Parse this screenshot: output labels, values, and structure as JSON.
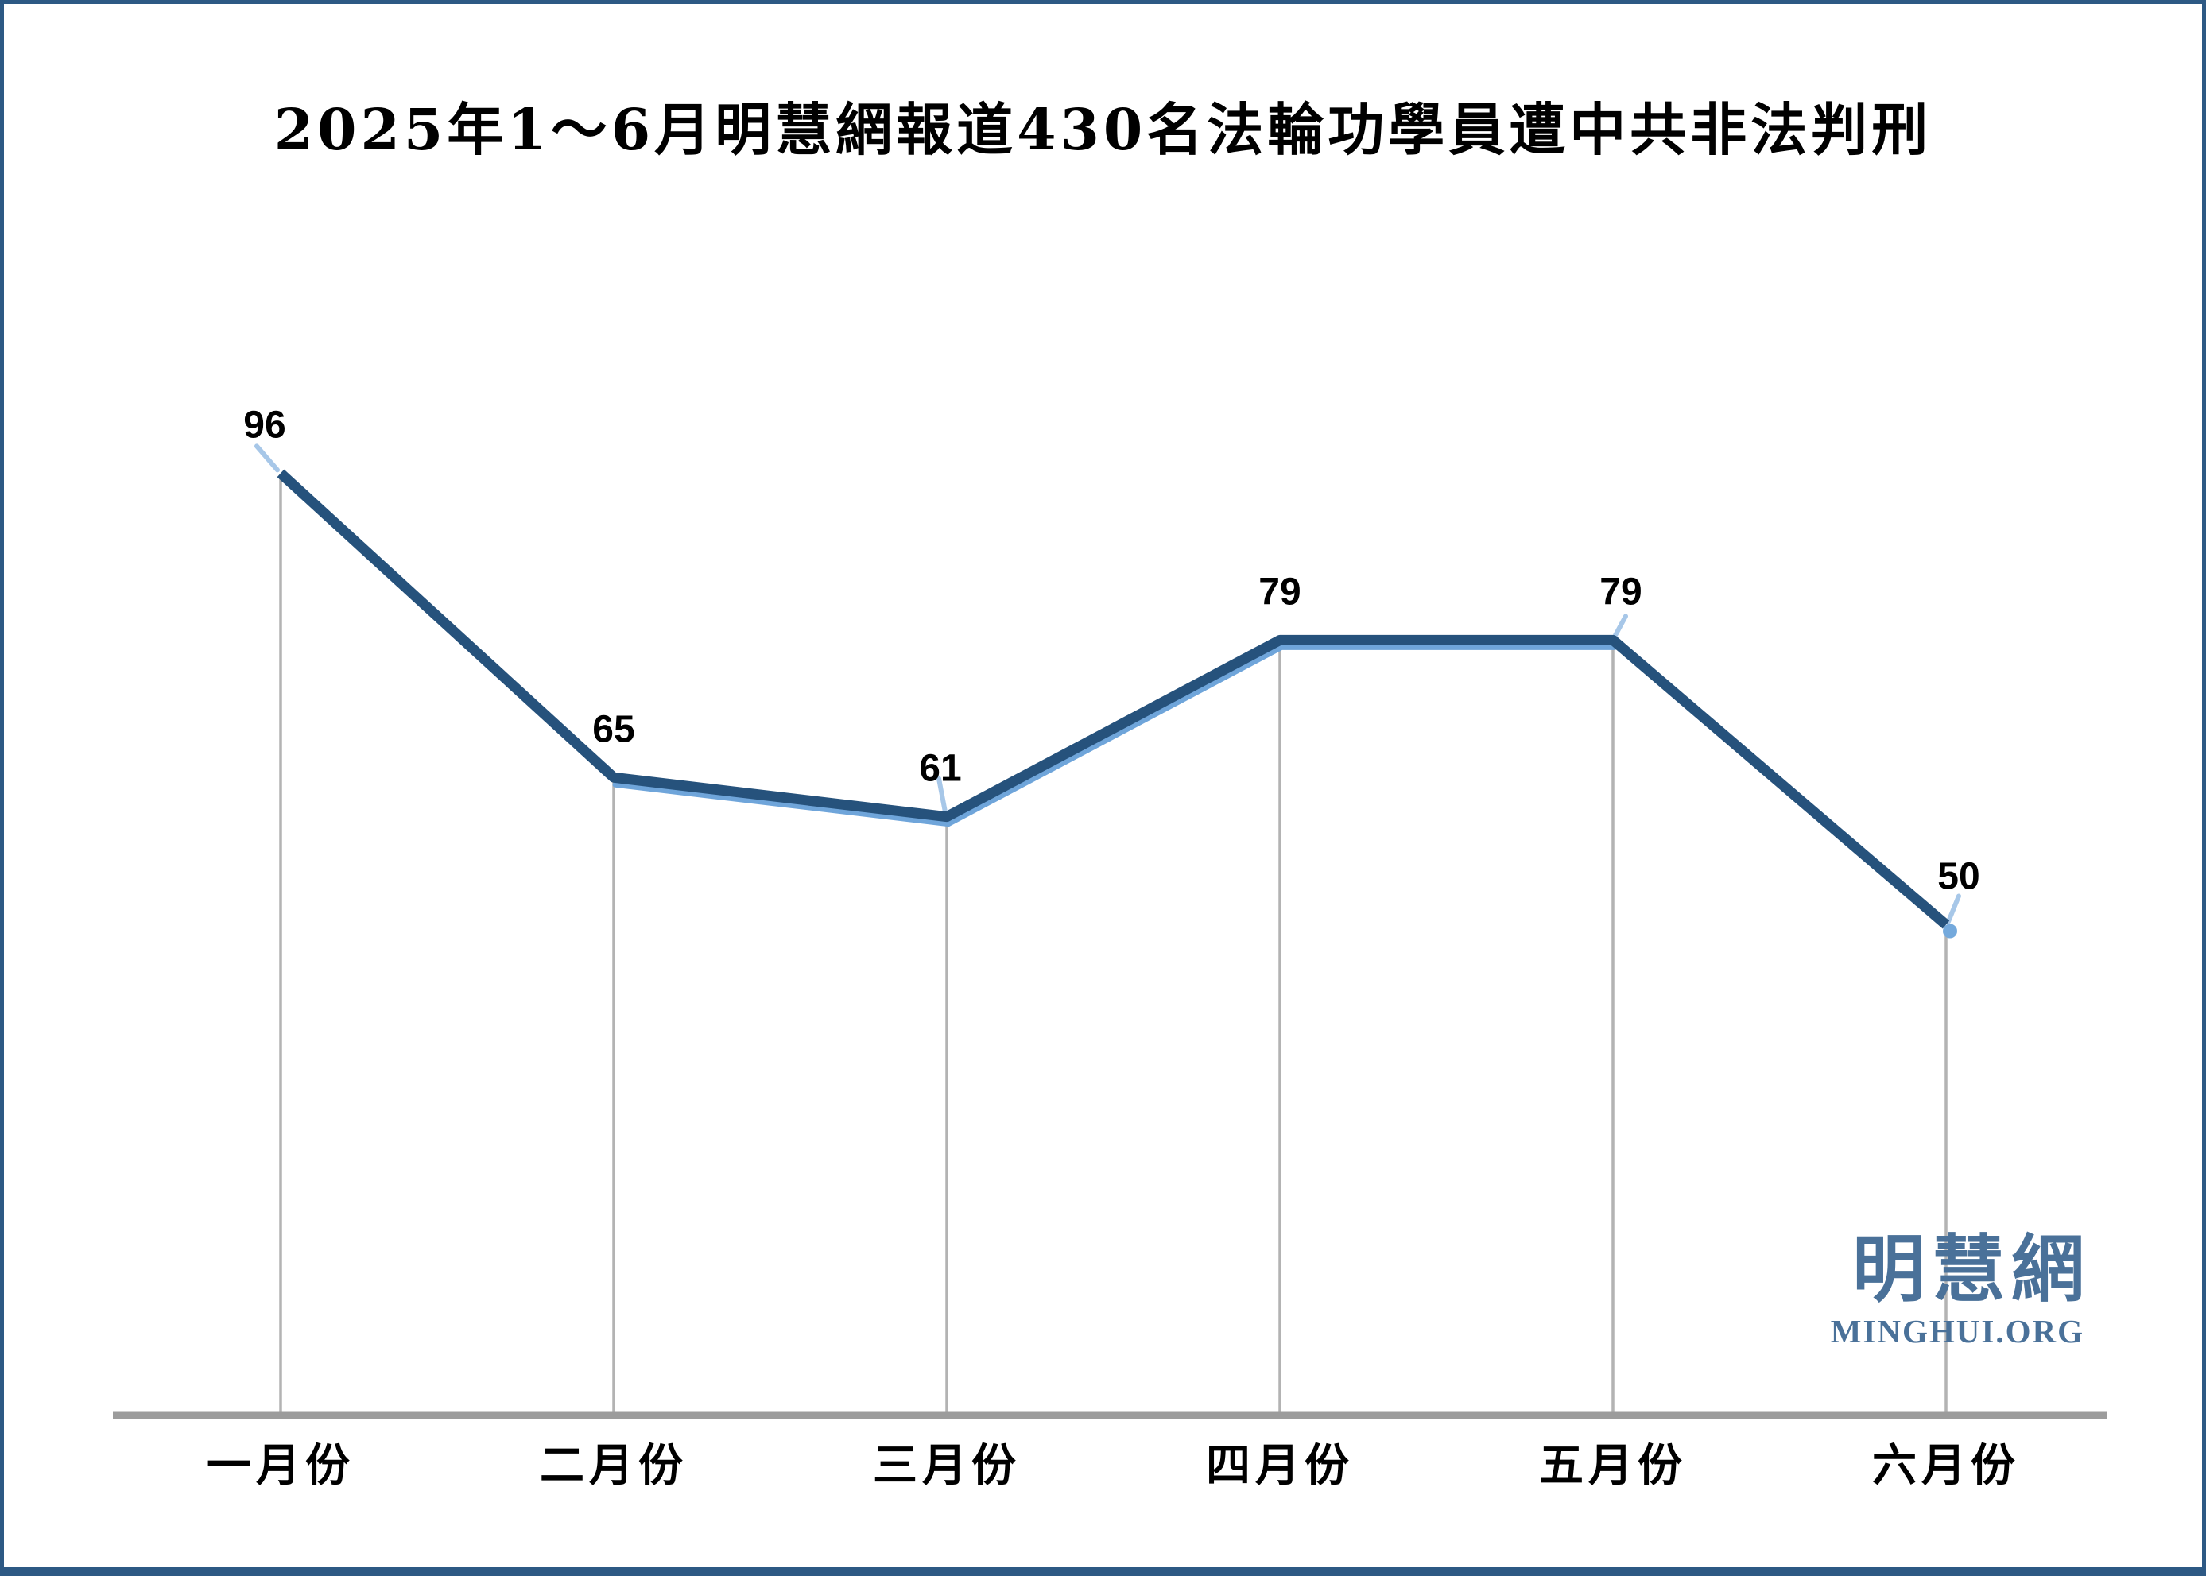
{
  "title": "2025年1～6月明慧網報道430名法輪功學員遭中共非法判刑",
  "logo": {
    "cjk": "明慧網",
    "latin": "MINGHUI.ORG"
  },
  "colors": {
    "line_dark": "#26527C",
    "line_light": "#6FA5DA",
    "accent_stub": "#A7C7E8",
    "endpoint_dot": "#74A9DC",
    "drop_line": "#B3B3B3",
    "axis": "#9C9C9C",
    "border": "#2D5984",
    "logo": "#4A7199",
    "text": "#000000"
  },
  "chart_data": {
    "type": "line",
    "title": "2025年1～6月明慧網報道430名法輪功學員遭中共非法判刑",
    "categories": [
      "一月份",
      "二月份",
      "三月份",
      "四月份",
      "五月份",
      "六月份"
    ],
    "values": [
      96,
      65,
      61,
      79,
      79,
      50
    ],
    "data_labels": [
      "96",
      "65",
      "61",
      "79",
      "79",
      "50"
    ],
    "total_reported": 430,
    "xlabel": "",
    "ylabel": "",
    "ylim": [
      0,
      100
    ],
    "value_axis_visible": false,
    "gridlines": false,
    "legend": "none",
    "category_axis_line": true,
    "drop_lines": true,
    "label_position": "above"
  }
}
